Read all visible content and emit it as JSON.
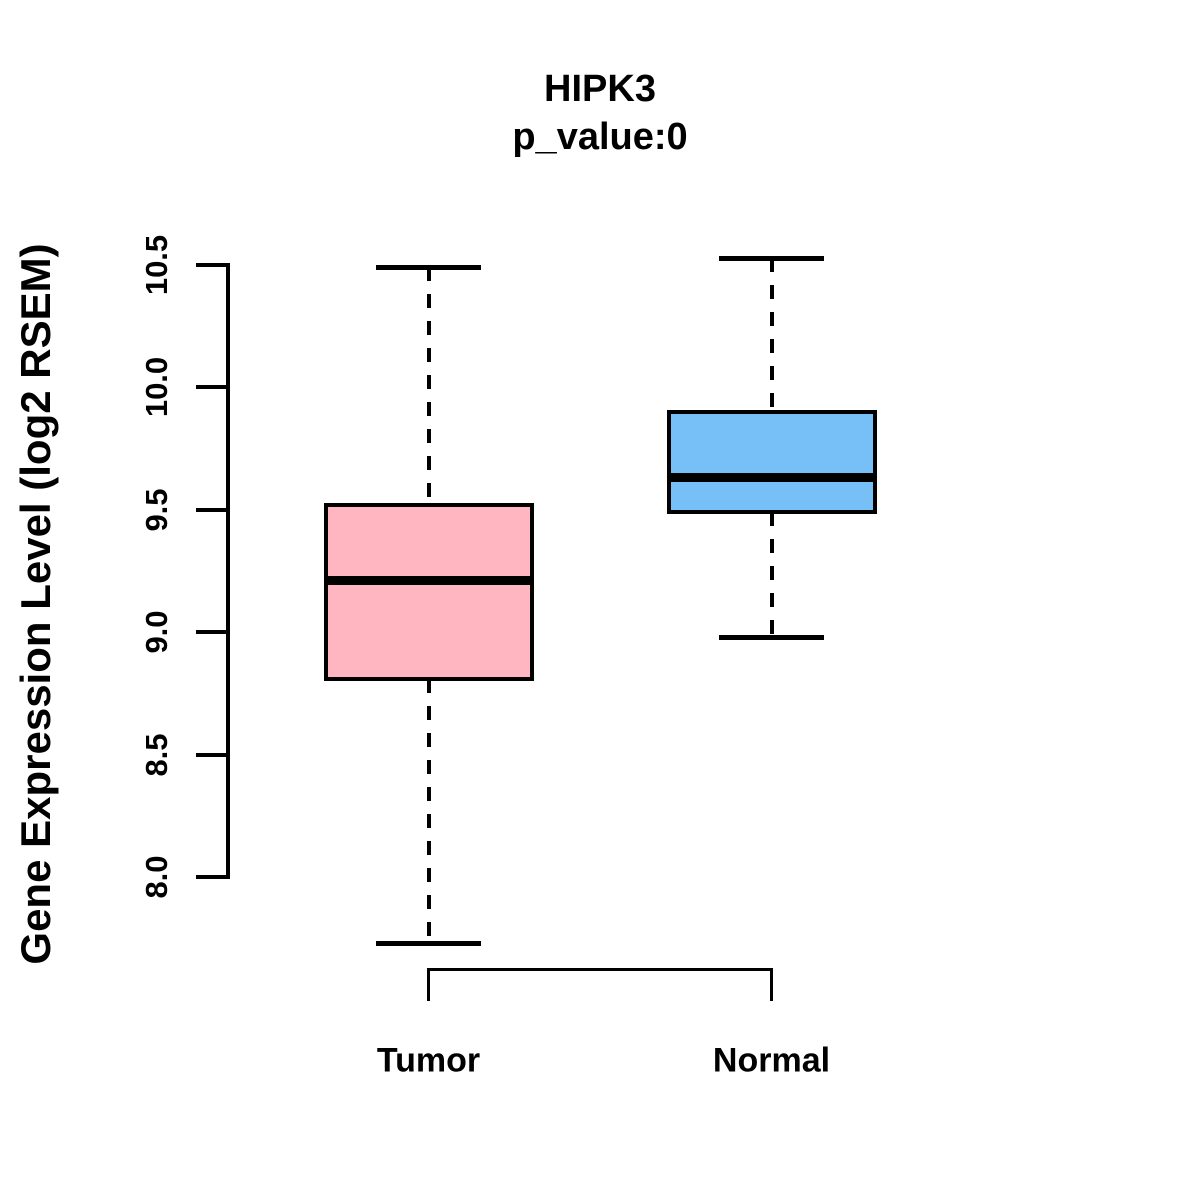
{
  "chart_data": {
    "type": "boxplot",
    "title": "HIPK3",
    "subtitle": "p_value:0",
    "ylabel": "Gene Expression Level (log2 RSEM)",
    "xlabel": "",
    "ylim": [
      7.6,
      10.65
    ],
    "axis_range_drawn": [
      8.0,
      10.5
    ],
    "yticks": [
      8.0,
      8.5,
      9.0,
      9.5,
      10.0,
      10.5
    ],
    "ytick_labels": [
      "8.0",
      "8.5",
      "9.0",
      "9.5",
      "10.0",
      "10.5"
    ],
    "grid": false,
    "legend": "none",
    "groups": [
      {
        "label": "Tumor",
        "color": "#FFB6C1",
        "whisker_low": 7.73,
        "q1": 8.81,
        "median": 9.21,
        "q3": 9.52,
        "whisker_high": 10.49
      },
      {
        "label": "Normal",
        "color": "#77C0F7",
        "whisker_low": 8.98,
        "q1": 9.49,
        "median": 9.63,
        "q3": 9.9,
        "whisker_high": 10.53
      }
    ]
  },
  "colors": {
    "box_border": "#000000",
    "text": "#000000",
    "background": "#FFFFFF"
  }
}
